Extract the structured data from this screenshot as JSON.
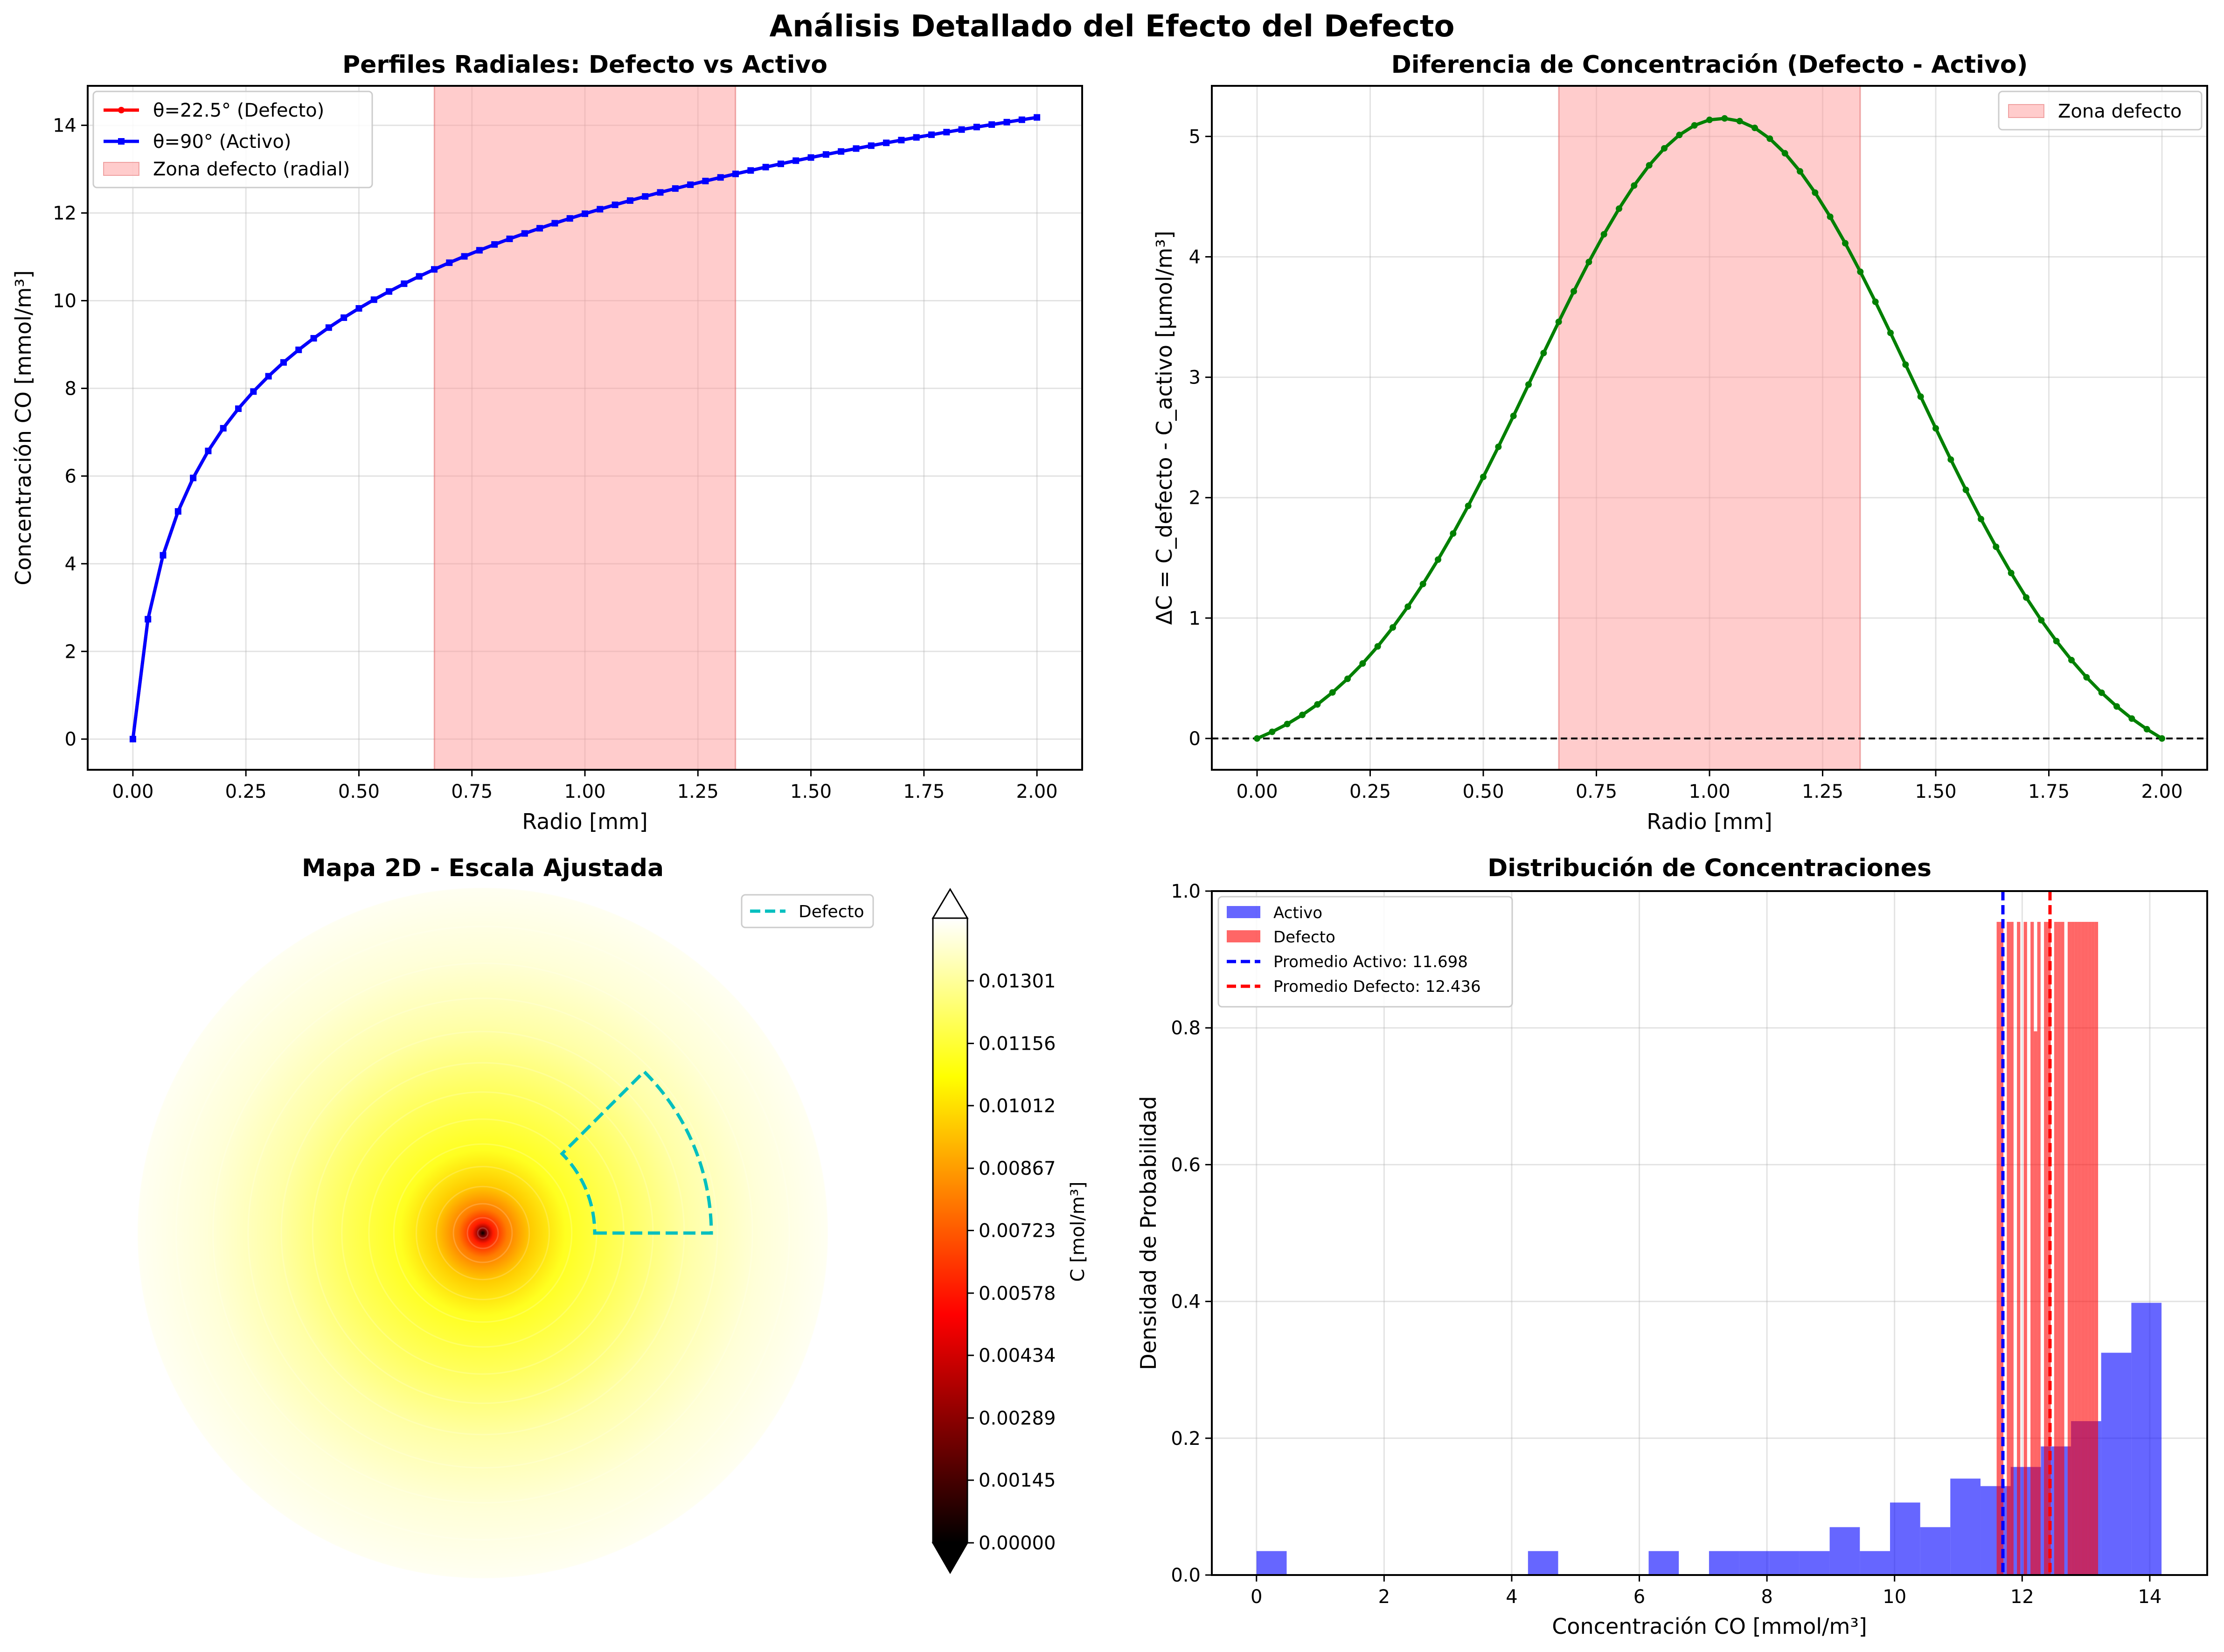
{
  "figure": {
    "suptitle": "Análisis Detallado del Efecto del Defecto"
  },
  "chart_data": [
    {
      "type": "line",
      "title": "Perfiles Radiales: Defecto vs Activo",
      "xlabel": "Radio [mm]",
      "ylabel": "Concentración CO [mmol/m³]",
      "xlim": [
        -0.1,
        2.1
      ],
      "ylim": [
        -0.7,
        14.9
      ],
      "xticks": [
        "0.00",
        "0.25",
        "0.50",
        "0.75",
        "1.00",
        "1.25",
        "1.50",
        "1.75",
        "2.00"
      ],
      "yticks": [
        "0",
        "2",
        "4",
        "6",
        "8",
        "10",
        "12",
        "14"
      ],
      "grid": true,
      "legend_position": "upper-left",
      "shaded_band": {
        "label": "Zona defecto (radial)",
        "x_from": 0.667,
        "x_to": 1.333,
        "color": "#ff9999"
      },
      "series": [
        {
          "name": "θ=22.5° (Defecto)",
          "color": "#ff0000",
          "marker": "circle",
          "function": "log-profile",
          "points": 61,
          "x_range": [
            0,
            2
          ],
          "y_at_max": 14.18
        },
        {
          "name": "θ=90° (Activo)",
          "color": "#0000ff",
          "marker": "square",
          "function": "log-profile",
          "points": 61,
          "x_range": [
            0,
            2
          ],
          "y_at_max": 14.18
        }
      ]
    },
    {
      "type": "line",
      "title": "Diferencia de Concentración (Defecto - Activo)",
      "xlabel": "Radio [mm]",
      "ylabel": "ΔC = C_defecto - C_activo [μmol/m³]",
      "xlim": [
        -0.1,
        2.1
      ],
      "ylim": [
        -0.26,
        5.42
      ],
      "xticks": [
        "0.00",
        "0.25",
        "0.50",
        "0.75",
        "1.00",
        "1.25",
        "1.50",
        "1.75",
        "2.00"
      ],
      "yticks": [
        "0",
        "1",
        "2",
        "3",
        "4",
        "5"
      ],
      "grid": true,
      "legend_position": "upper-right",
      "reference_line": {
        "y": 0,
        "style": "dashed",
        "color": "#000000"
      },
      "shaded_band": {
        "label": "Zona defecto",
        "x_from": 0.667,
        "x_to": 1.333,
        "color": "#ff9999"
      },
      "series": [
        {
          "color": "#008000",
          "marker": "circle",
          "points": 61,
          "x_range": [
            0,
            2
          ],
          "peak_x": 1.03,
          "peak_y": 5.15
        }
      ]
    },
    {
      "type": "heatmap",
      "title": "Mapa 2D - Escala Ajustada",
      "colorbar_label": "C [mol/m³]",
      "colorbar_ticks": [
        "0.00000",
        "0.00145",
        "0.00289",
        "0.00434",
        "0.00578",
        "0.00723",
        "0.00867",
        "0.01012",
        "0.01156",
        "0.01301"
      ],
      "colormap": "hot",
      "vmin": 0,
      "vmax": 0.01446,
      "grid": false,
      "legend_position": "upper-right",
      "legend": [
        {
          "name": "Defecto",
          "color": "#00bfbf",
          "style": "dashed"
        }
      ],
      "defect_sector": {
        "r_from_mm": 0.667,
        "r_to_mm": 1.333,
        "theta_from_deg": 0,
        "theta_to_deg": 45
      }
    },
    {
      "type": "bar",
      "title": "Distribución de Concentraciones",
      "xlabel": "Concentración CO [mmol/m³]",
      "ylabel": "Densidad de Probabilidad",
      "xlim": [
        -0.7,
        14.9
      ],
      "ylim": [
        0,
        1.0
      ],
      "xticks": [
        "0",
        "2",
        "4",
        "6",
        "8",
        "10",
        "12",
        "14"
      ],
      "yticks": [
        "0.0",
        "0.2",
        "0.4",
        "0.6",
        "0.8",
        "1.0"
      ],
      "grid": true,
      "legend_position": "upper-left",
      "series": [
        {
          "name": "Activo",
          "color": "#0000ff",
          "bin_edges": [
            0,
            0.473,
            0.946,
            1.418,
            1.891,
            2.364,
            2.837,
            3.31,
            3.782,
            4.255,
            4.728,
            5.201,
            5.674,
            6.146,
            6.619,
            7.092,
            7.565,
            8.038,
            8.51,
            8.983,
            9.456,
            9.929,
            10.402,
            10.874,
            11.347,
            11.82,
            12.293,
            12.766,
            13.238,
            13.711,
            14.184
          ],
          "densities": [
            0.035,
            0,
            0,
            0,
            0,
            0,
            0,
            0,
            0,
            0.035,
            0,
            0,
            0,
            0.035,
            0,
            0.035,
            0.035,
            0.035,
            0.035,
            0.07,
            0.035,
            0.106,
            0.07,
            0.141,
            0.13,
            0.158,
            0.188,
            0.225,
            0.325,
            0.398
          ]
        },
        {
          "name": "Defecto",
          "color": "#ff0000",
          "bin_edges": [
            11.6,
            11.653,
            11.706,
            11.759,
            11.812,
            11.865,
            11.918,
            11.971,
            12.024,
            12.077,
            12.13,
            12.183,
            12.236,
            12.289,
            12.342,
            12.395,
            12.448,
            12.501,
            12.554,
            12.607,
            12.66,
            12.713,
            12.766,
            12.819,
            12.872,
            12.925,
            12.978,
            13.031,
            13.084,
            13.137,
            13.19
          ],
          "densities": [
            0.955,
            0.955,
            0,
            0.955,
            0.955,
            0,
            0.955,
            0,
            0.955,
            0,
            0.955,
            0.795,
            0.955,
            0,
            0.955,
            0.955,
            0,
            0.955,
            0.955,
            0.955,
            0,
            0.955,
            0.955,
            0.955,
            0.955,
            0.955,
            0.955,
            0.955,
            0.955,
            0.955
          ]
        }
      ],
      "reference_lines": [
        {
          "name": "Promedio Activo: 11.698",
          "x": 11.698,
          "color": "#0000ff",
          "style": "dashed"
        },
        {
          "name": "Promedio Defecto: 12.436",
          "x": 12.436,
          "color": "#ff0000",
          "style": "dashed"
        }
      ]
    }
  ]
}
